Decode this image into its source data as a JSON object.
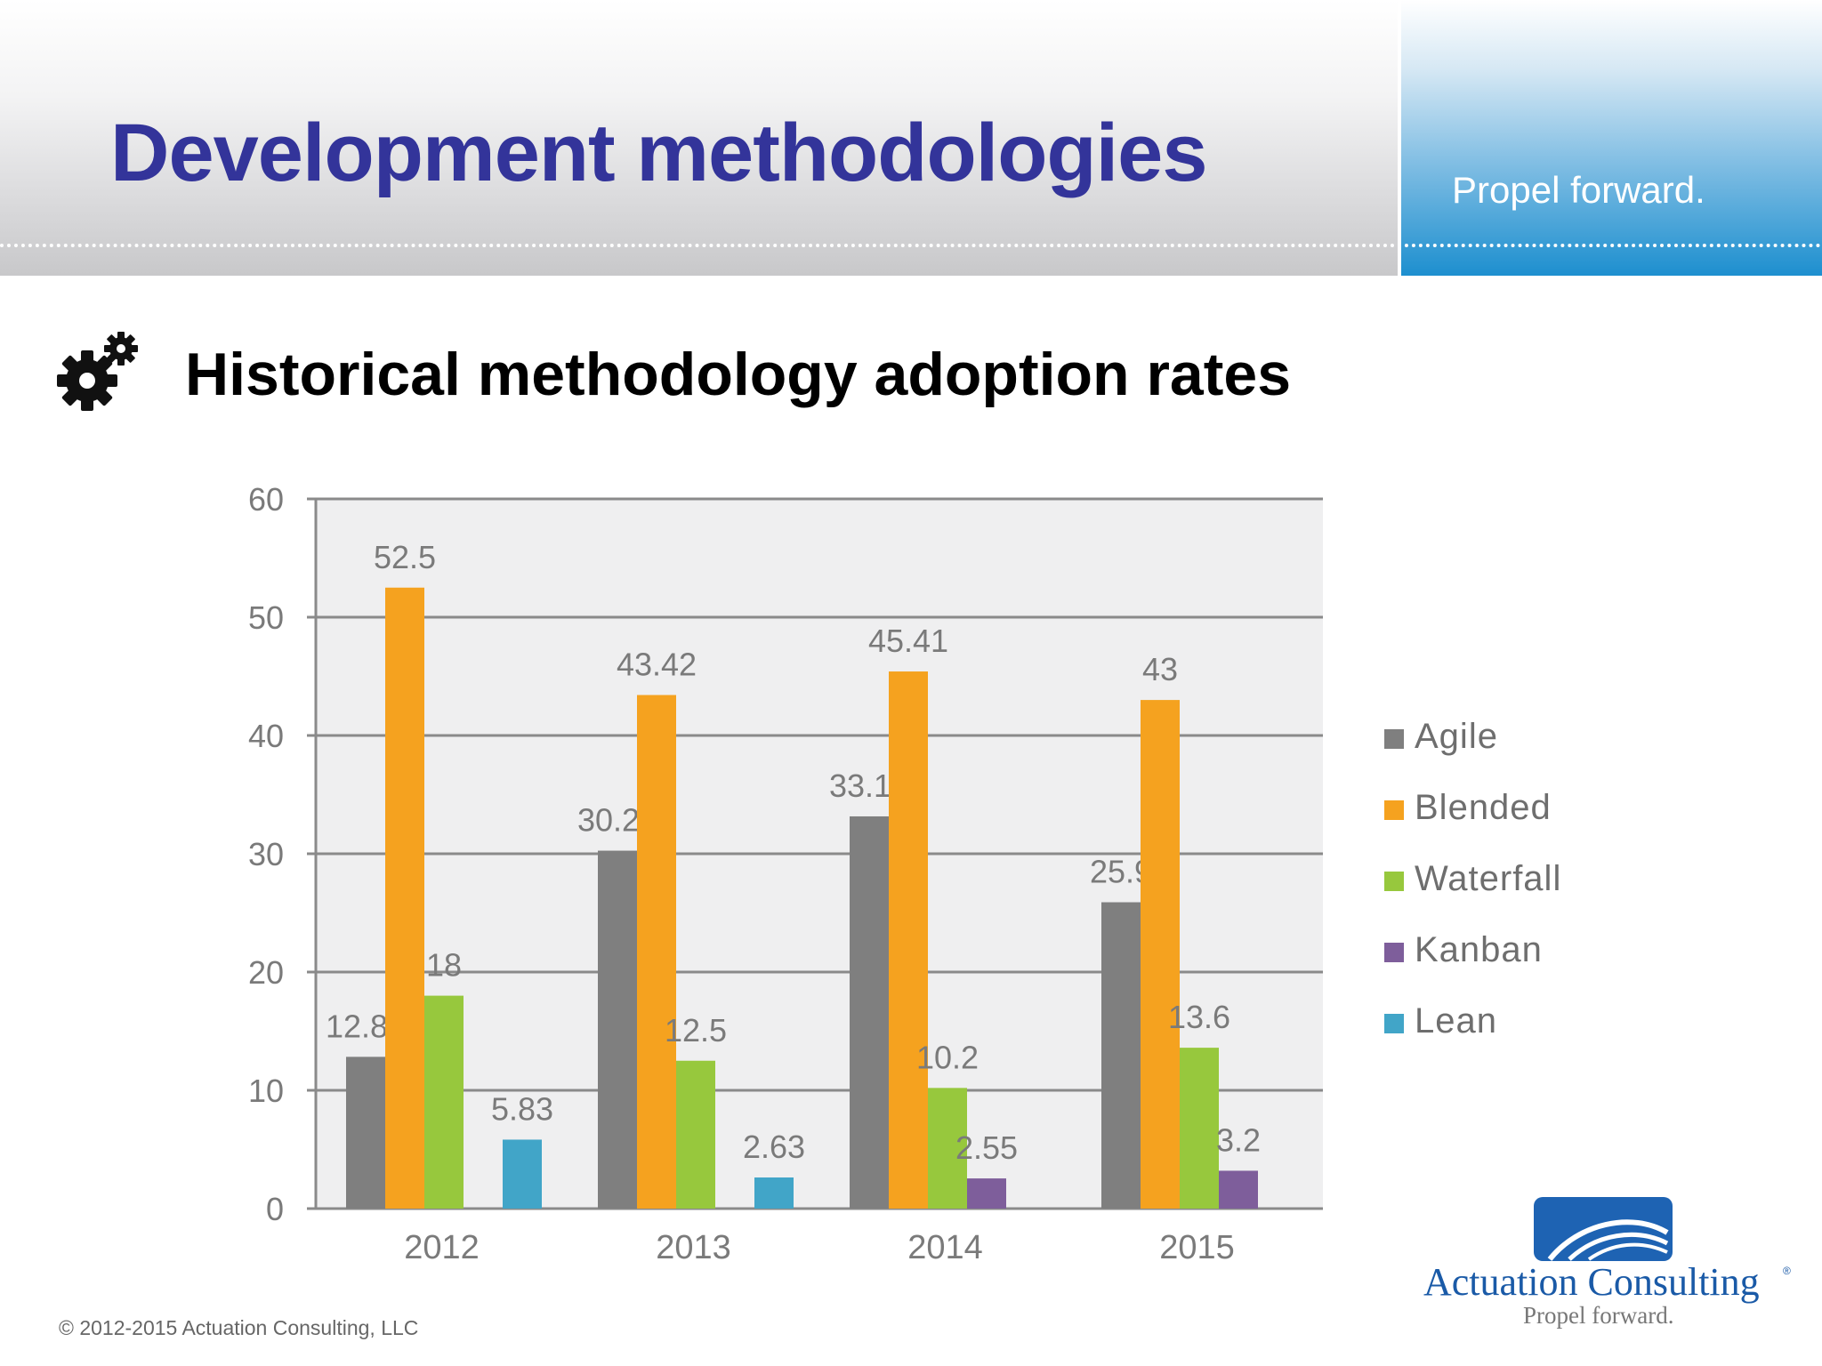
{
  "header": {
    "title": "Development methodologies",
    "tagline": "Propel forward."
  },
  "section": {
    "icon": "gears-icon",
    "title": "Historical methodology adoption rates"
  },
  "chart_data": {
    "type": "bar",
    "categories": [
      "2012",
      "2013",
      "2014",
      "2015"
    ],
    "series": [
      {
        "name": "Agile",
        "color": "#7f7f7f",
        "values": [
          12.83,
          30.26,
          33.16,
          25.9
        ],
        "labels": [
          "12.83",
          "30.26",
          "33.16",
          "25.9"
        ]
      },
      {
        "name": "Blended",
        "color": "#f5a21f",
        "values": [
          52.5,
          43.42,
          45.41,
          43
        ],
        "labels": [
          "52.5",
          "43.42",
          "45.41",
          "43"
        ]
      },
      {
        "name": "Waterfall",
        "color": "#97c83d",
        "values": [
          18,
          12.5,
          10.2,
          13.6
        ],
        "labels": [
          "18",
          "12.5",
          "10.2",
          "13.6"
        ]
      },
      {
        "name": "Kanban",
        "color": "#7e5e9b",
        "values": [
          null,
          null,
          2.55,
          3.2
        ],
        "labels": [
          null,
          null,
          "2.55",
          "3.2"
        ]
      },
      {
        "name": "Lean",
        "color": "#41a5c8",
        "values": [
          5.83,
          2.63,
          null,
          null
        ],
        "labels": [
          "5.83",
          "2.63",
          null,
          null
        ]
      }
    ],
    "ylim": [
      0,
      60
    ],
    "yticks": [
      0,
      10,
      20,
      30,
      40,
      50,
      60
    ],
    "grid": true,
    "legend": "right",
    "title": "",
    "xlabel": "",
    "ylabel": ""
  },
  "logo": {
    "name": "Actuation Consulting",
    "registered": "®",
    "tagline": "Propel forward."
  },
  "footer": {
    "copyright": "© 2012-2015 Actuation Consulting, LLC"
  }
}
